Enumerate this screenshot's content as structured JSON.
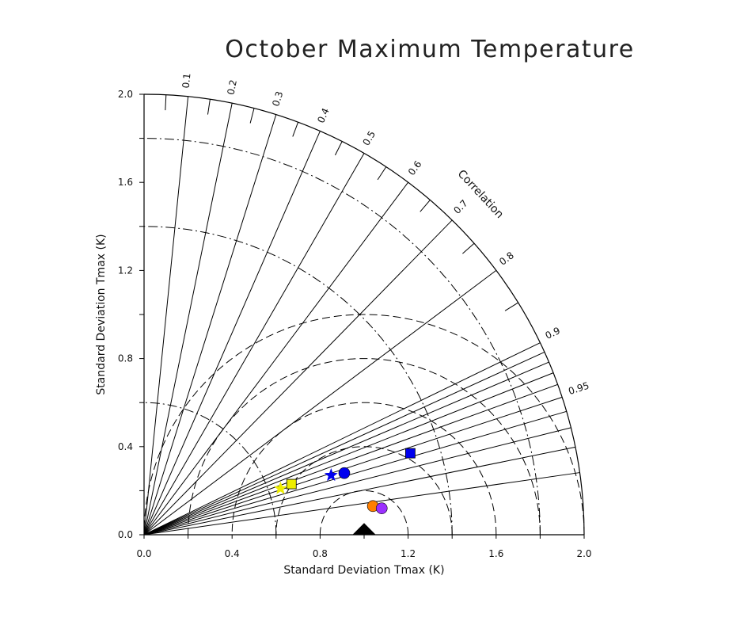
{
  "chart_data": {
    "type": "scatter",
    "subtype": "taylor-diagram",
    "title": "October Maximum Temperature",
    "xlabel": "Standard Deviation Tmax (K)",
    "ylabel": "Standard Deviation Tmax (K)",
    "xlim": [
      0,
      2.0
    ],
    "ylim": [
      0,
      2.0
    ],
    "x_tick_labels": [
      "0.0",
      "0.4",
      "0.8",
      "1.2",
      "1.6",
      "2.0"
    ],
    "y_tick_labels": [
      "0.0",
      "0.4",
      "0.8",
      "1.2",
      "1.6",
      "2.0"
    ],
    "correlation_label": "Correlation",
    "correlation_ticks": [
      {
        "value": 0.1,
        "label": "0.1"
      },
      {
        "value": 0.2,
        "label": "0.2"
      },
      {
        "value": 0.3,
        "label": "0.3"
      },
      {
        "value": 0.4,
        "label": "0.4"
      },
      {
        "value": 0.5,
        "label": "0.5"
      },
      {
        "value": 0.6,
        "label": "0.6"
      },
      {
        "value": 0.7,
        "label": "0.7"
      },
      {
        "value": 0.8,
        "label": "0.8"
      },
      {
        "value": 0.9,
        "label": "0.9"
      },
      {
        "value": 0.95,
        "label": "0.95"
      }
    ],
    "correlation_lines": [
      0.1,
      0.2,
      0.3,
      0.4,
      0.5,
      0.6,
      0.7,
      0.8,
      0.9,
      0.91,
      0.92,
      0.93,
      0.94,
      0.95,
      0.96,
      0.97,
      0.98,
      0.99
    ],
    "reference_std": 1.0,
    "rms_contours": [
      0.2,
      0.4,
      0.6,
      0.8,
      1.0
    ],
    "std_arcs_dashdot": [
      0.6,
      1.4,
      1.8
    ],
    "std_arcs_solid": [
      2.0
    ],
    "grid": true,
    "points": [
      {
        "marker": "triangle",
        "color": "#000000",
        "x": 1.0,
        "y": 0.0
      },
      {
        "marker": "square",
        "color": "#0000ee",
        "x": 1.21,
        "y": 0.37
      },
      {
        "marker": "circle",
        "color": "#0000ee",
        "x": 0.91,
        "y": 0.28
      },
      {
        "marker": "star",
        "color": "#0000ee",
        "x": 0.85,
        "y": 0.27
      },
      {
        "marker": "square",
        "color": "#eeee00",
        "x": 0.67,
        "y": 0.23
      },
      {
        "marker": "star",
        "color": "#eeee00",
        "x": 0.62,
        "y": 0.21
      },
      {
        "marker": "circle",
        "color": "#ff7f00",
        "x": 1.04,
        "y": 0.13
      },
      {
        "marker": "circle",
        "color": "#9b30ff",
        "x": 1.08,
        "y": 0.12
      }
    ]
  }
}
